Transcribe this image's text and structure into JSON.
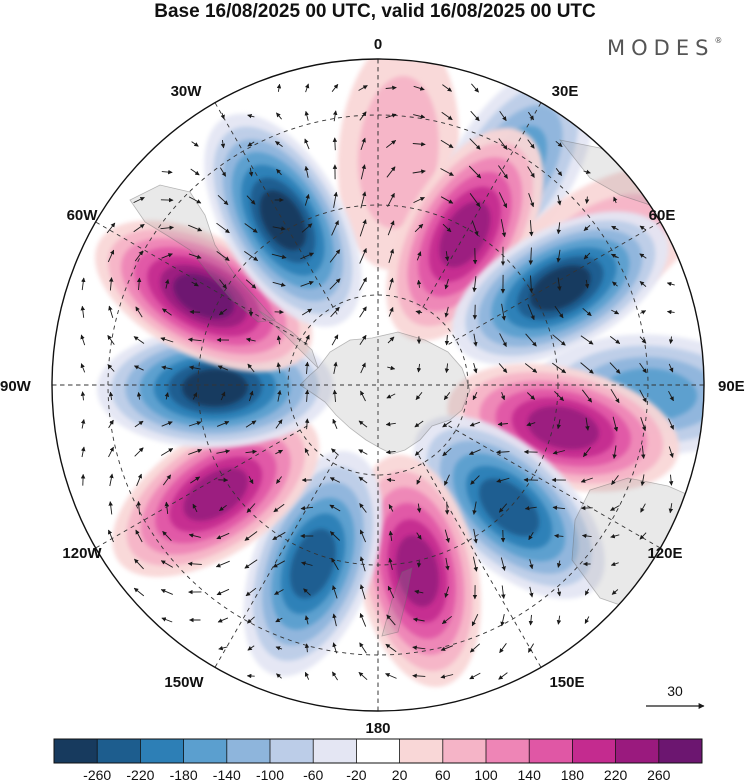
{
  "header": {
    "title": "Base 16/08/2025 00 UTC, valid 16/08/2025 00 UTC",
    "brand": "MODES",
    "brand_mark": "®"
  },
  "chart_data": {
    "type": "heatmap",
    "projection": "south-polar-stereographic",
    "title": "Base 16/08/2025 00 UTC, valid 16/08/2025 00 UTC",
    "longitude_labels": [
      "0",
      "30E",
      "60E",
      "90E",
      "120E",
      "150E",
      "180",
      "150W",
      "120W",
      "90W",
      "60W",
      "30W"
    ],
    "colorbar": {
      "tick_labels": [
        "-260",
        "-220",
        "-180",
        "-140",
        "-100",
        "-60",
        "-20",
        "20",
        "60",
        "100",
        "140",
        "180",
        "220",
        "260"
      ],
      "colors": [
        "#173a5e",
        "#1d5d8e",
        "#2d7fb6",
        "#5b9fcf",
        "#8eb5dc",
        "#bccde8",
        "#e4e6f3",
        "#ffffff",
        "#f9d7d7",
        "#f5b4c7",
        "#ee85b6",
        "#e057a5",
        "#c42b8f",
        "#9a1a7e",
        "#6c1670"
      ]
    },
    "anomaly_centers": [
      {
        "lon": 5,
        "lat": -47,
        "value": 60
      },
      {
        "lon": 32,
        "lat": -43,
        "value": -140
      },
      {
        "lon": 58,
        "lat": -42,
        "value": 60
      },
      {
        "lon": 92,
        "lat": -40,
        "value": -140
      },
      {
        "lon": 30,
        "lat": -58,
        "value": 240
      },
      {
        "lon": 62,
        "lat": -52,
        "value": -260
      },
      {
        "lon": 103,
        "lat": -55,
        "value": 240
      },
      {
        "lon": 133,
        "lat": -57,
        "value": -240
      },
      {
        "lon": 168,
        "lat": -55,
        "value": 230
      },
      {
        "lon": -160,
        "lat": -55,
        "value": -220
      },
      {
        "lon": -124,
        "lat": -54,
        "value": 240
      },
      {
        "lon": -91,
        "lat": -60,
        "value": -260
      },
      {
        "lon": -63,
        "lat": -54,
        "value": 260
      },
      {
        "lon": -30,
        "lat": -55,
        "value": -260
      }
    ],
    "vector_reference": {
      "value": 30,
      "label": "30"
    }
  }
}
